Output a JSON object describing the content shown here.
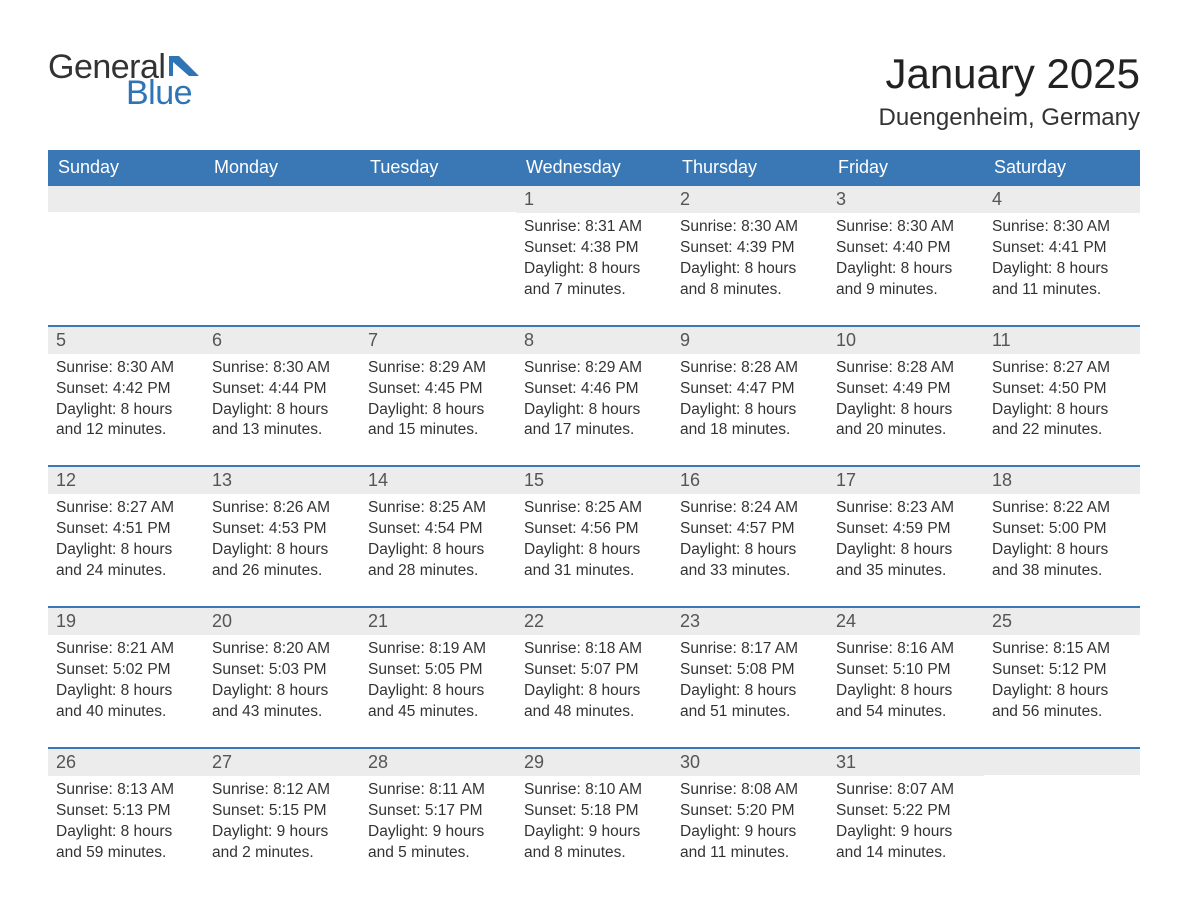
{
  "brand": {
    "word1": "General",
    "word2": "Blue",
    "word1_color": "#333333",
    "word2_color": "#2f75b5",
    "icon_color": "#2f75b5",
    "font_size": 34
  },
  "header": {
    "title": "January 2025",
    "location": "Duengenheim, Germany",
    "title_fontsize": 42,
    "location_fontsize": 24,
    "title_color": "#222222"
  },
  "styling": {
    "background_color": "#ffffff",
    "header_bg": "#3a78b5",
    "header_text_color": "#ffffff",
    "daynum_bg": "#ececec",
    "daynum_color": "#555555",
    "body_text_color": "#333333",
    "week_border_color": "#3a78b5",
    "weekday_fontsize": 18,
    "daynum_fontsize": 18,
    "body_fontsize": 15.5
  },
  "weekdays": [
    "Sunday",
    "Monday",
    "Tuesday",
    "Wednesday",
    "Thursday",
    "Friday",
    "Saturday"
  ],
  "weeks": [
    [
      {
        "day": "",
        "lines": []
      },
      {
        "day": "",
        "lines": []
      },
      {
        "day": "",
        "lines": []
      },
      {
        "day": "1",
        "lines": [
          "Sunrise: 8:31 AM",
          "Sunset: 4:38 PM",
          "Daylight: 8 hours",
          "and 7 minutes."
        ]
      },
      {
        "day": "2",
        "lines": [
          "Sunrise: 8:30 AM",
          "Sunset: 4:39 PM",
          "Daylight: 8 hours",
          "and 8 minutes."
        ]
      },
      {
        "day": "3",
        "lines": [
          "Sunrise: 8:30 AM",
          "Sunset: 4:40 PM",
          "Daylight: 8 hours",
          "and 9 minutes."
        ]
      },
      {
        "day": "4",
        "lines": [
          "Sunrise: 8:30 AM",
          "Sunset: 4:41 PM",
          "Daylight: 8 hours",
          "and 11 minutes."
        ]
      }
    ],
    [
      {
        "day": "5",
        "lines": [
          "Sunrise: 8:30 AM",
          "Sunset: 4:42 PM",
          "Daylight: 8 hours",
          "and 12 minutes."
        ]
      },
      {
        "day": "6",
        "lines": [
          "Sunrise: 8:30 AM",
          "Sunset: 4:44 PM",
          "Daylight: 8 hours",
          "and 13 minutes."
        ]
      },
      {
        "day": "7",
        "lines": [
          "Sunrise: 8:29 AM",
          "Sunset: 4:45 PM",
          "Daylight: 8 hours",
          "and 15 minutes."
        ]
      },
      {
        "day": "8",
        "lines": [
          "Sunrise: 8:29 AM",
          "Sunset: 4:46 PM",
          "Daylight: 8 hours",
          "and 17 minutes."
        ]
      },
      {
        "day": "9",
        "lines": [
          "Sunrise: 8:28 AM",
          "Sunset: 4:47 PM",
          "Daylight: 8 hours",
          "and 18 minutes."
        ]
      },
      {
        "day": "10",
        "lines": [
          "Sunrise: 8:28 AM",
          "Sunset: 4:49 PM",
          "Daylight: 8 hours",
          "and 20 minutes."
        ]
      },
      {
        "day": "11",
        "lines": [
          "Sunrise: 8:27 AM",
          "Sunset: 4:50 PM",
          "Daylight: 8 hours",
          "and 22 minutes."
        ]
      }
    ],
    [
      {
        "day": "12",
        "lines": [
          "Sunrise: 8:27 AM",
          "Sunset: 4:51 PM",
          "Daylight: 8 hours",
          "and 24 minutes."
        ]
      },
      {
        "day": "13",
        "lines": [
          "Sunrise: 8:26 AM",
          "Sunset: 4:53 PM",
          "Daylight: 8 hours",
          "and 26 minutes."
        ]
      },
      {
        "day": "14",
        "lines": [
          "Sunrise: 8:25 AM",
          "Sunset: 4:54 PM",
          "Daylight: 8 hours",
          "and 28 minutes."
        ]
      },
      {
        "day": "15",
        "lines": [
          "Sunrise: 8:25 AM",
          "Sunset: 4:56 PM",
          "Daylight: 8 hours",
          "and 31 minutes."
        ]
      },
      {
        "day": "16",
        "lines": [
          "Sunrise: 8:24 AM",
          "Sunset: 4:57 PM",
          "Daylight: 8 hours",
          "and 33 minutes."
        ]
      },
      {
        "day": "17",
        "lines": [
          "Sunrise: 8:23 AM",
          "Sunset: 4:59 PM",
          "Daylight: 8 hours",
          "and 35 minutes."
        ]
      },
      {
        "day": "18",
        "lines": [
          "Sunrise: 8:22 AM",
          "Sunset: 5:00 PM",
          "Daylight: 8 hours",
          "and 38 minutes."
        ]
      }
    ],
    [
      {
        "day": "19",
        "lines": [
          "Sunrise: 8:21 AM",
          "Sunset: 5:02 PM",
          "Daylight: 8 hours",
          "and 40 minutes."
        ]
      },
      {
        "day": "20",
        "lines": [
          "Sunrise: 8:20 AM",
          "Sunset: 5:03 PM",
          "Daylight: 8 hours",
          "and 43 minutes."
        ]
      },
      {
        "day": "21",
        "lines": [
          "Sunrise: 8:19 AM",
          "Sunset: 5:05 PM",
          "Daylight: 8 hours",
          "and 45 minutes."
        ]
      },
      {
        "day": "22",
        "lines": [
          "Sunrise: 8:18 AM",
          "Sunset: 5:07 PM",
          "Daylight: 8 hours",
          "and 48 minutes."
        ]
      },
      {
        "day": "23",
        "lines": [
          "Sunrise: 8:17 AM",
          "Sunset: 5:08 PM",
          "Daylight: 8 hours",
          "and 51 minutes."
        ]
      },
      {
        "day": "24",
        "lines": [
          "Sunrise: 8:16 AM",
          "Sunset: 5:10 PM",
          "Daylight: 8 hours",
          "and 54 minutes."
        ]
      },
      {
        "day": "25",
        "lines": [
          "Sunrise: 8:15 AM",
          "Sunset: 5:12 PM",
          "Daylight: 8 hours",
          "and 56 minutes."
        ]
      }
    ],
    [
      {
        "day": "26",
        "lines": [
          "Sunrise: 8:13 AM",
          "Sunset: 5:13 PM",
          "Daylight: 8 hours",
          "and 59 minutes."
        ]
      },
      {
        "day": "27",
        "lines": [
          "Sunrise: 8:12 AM",
          "Sunset: 5:15 PM",
          "Daylight: 9 hours",
          "and 2 minutes."
        ]
      },
      {
        "day": "28",
        "lines": [
          "Sunrise: 8:11 AM",
          "Sunset: 5:17 PM",
          "Daylight: 9 hours",
          "and 5 minutes."
        ]
      },
      {
        "day": "29",
        "lines": [
          "Sunrise: 8:10 AM",
          "Sunset: 5:18 PM",
          "Daylight: 9 hours",
          "and 8 minutes."
        ]
      },
      {
        "day": "30",
        "lines": [
          "Sunrise: 8:08 AM",
          "Sunset: 5:20 PM",
          "Daylight: 9 hours",
          "and 11 minutes."
        ]
      },
      {
        "day": "31",
        "lines": [
          "Sunrise: 8:07 AM",
          "Sunset: 5:22 PM",
          "Daylight: 9 hours",
          "and 14 minutes."
        ]
      },
      {
        "day": "",
        "lines": []
      }
    ]
  ]
}
